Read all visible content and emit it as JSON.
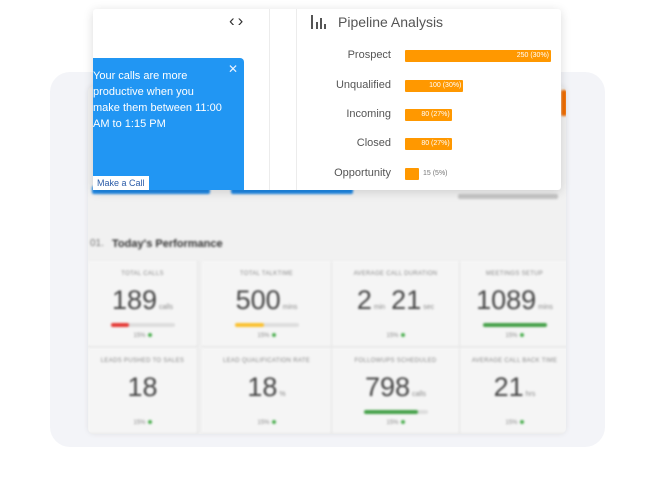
{
  "dashboard": {
    "performance_title": "Today's Performance",
    "performance_prefix": "01.",
    "tiles": [
      {
        "label": "TOTAL CALLS",
        "value": "189",
        "unit": "calls",
        "pct": "15%",
        "bar_color": "#e53935",
        "bar_fill": 0.28
      },
      {
        "label": "TOTAL TALKTIME",
        "value": "500",
        "unit": "mins",
        "pct": "15%",
        "bar_color": "#fbc02d",
        "bar_fill": 0.45
      },
      {
        "label": "AVERAGE CALL DURATION",
        "value": "2",
        "unit": "min",
        "value2": "21",
        "unit2": "sec",
        "pct": "15%",
        "bar_color": "",
        "bar_fill": 0
      },
      {
        "label": "MEETINGS SETUP",
        "value": "1089",
        "unit": "mins",
        "pct": "15%",
        "bar_color": "#43a047",
        "bar_fill": 1.0
      },
      {
        "label": "LEADS PUSHED TO SALES",
        "value": "18",
        "unit": "",
        "pct": "15%",
        "bar_color": "",
        "bar_fill": 0
      },
      {
        "label": "LEAD QUALIFICATION RATE",
        "value": "18",
        "unit": "%",
        "pct": "15%",
        "bar_color": "",
        "bar_fill": 0
      },
      {
        "label": "FOLLOWUPS SCHEDULED",
        "value": "798",
        "unit": "calls",
        "pct": "15%",
        "bar_color": "#43a047",
        "bar_fill": 0.85
      },
      {
        "label": "AVERAGE CALL BACK TIME",
        "value": "21",
        "unit": "hrs",
        "pct": "15%",
        "bar_color": "",
        "bar_fill": 0
      }
    ]
  },
  "tip": {
    "text": "Your calls are more productive when you make them between 11:00 AM to 1:15 PM",
    "button_label": "Make a Call"
  },
  "pipeline": {
    "title": "Pipeline Analysis",
    "accent": "#ff9800",
    "rows": [
      {
        "label": "Prospect",
        "value": 250,
        "text": "250 (30%)"
      },
      {
        "label": "Unqualified",
        "value": 100,
        "text": "100 (30%)"
      },
      {
        "label": "Incoming",
        "value": 80,
        "text": "80 (27%)"
      },
      {
        "label": "Closed",
        "value": 80,
        "text": "80 (27%)"
      },
      {
        "label": "Opportunity",
        "value": 15,
        "text": "15 (5%)"
      }
    ]
  }
}
